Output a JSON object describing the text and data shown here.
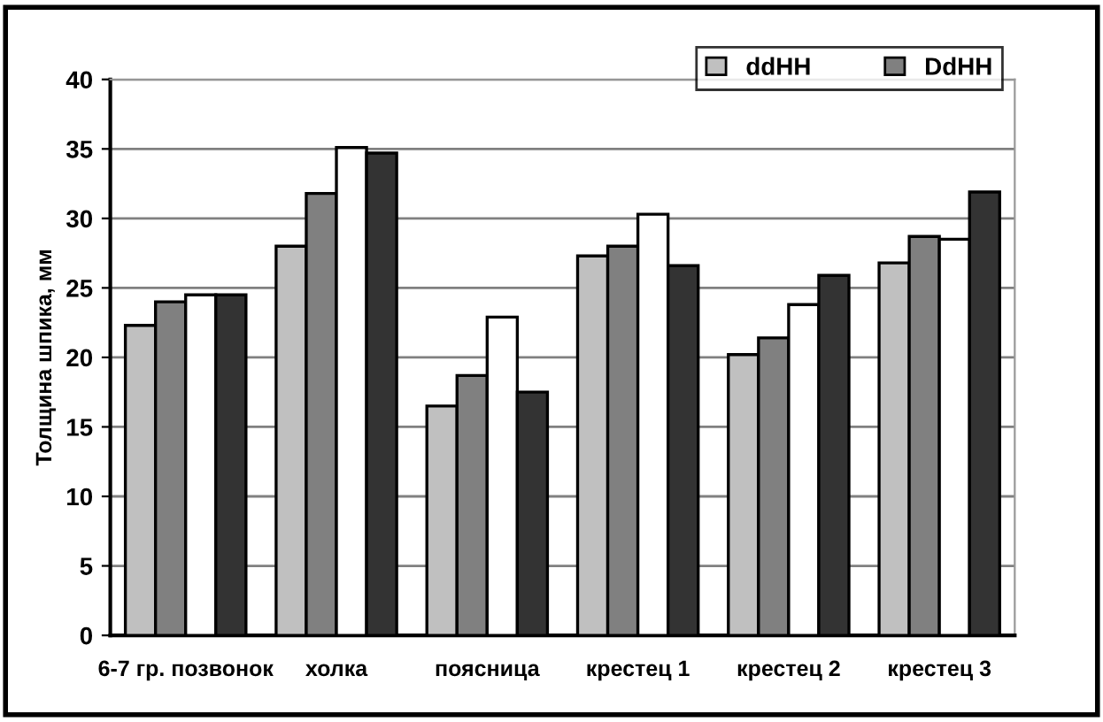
{
  "chart_data": {
    "type": "bar",
    "ylabel": "Толщина шпика, мм",
    "categories": [
      "6-7 гр. позвонок",
      "холка",
      "поясница",
      "крестец 1",
      "крестец 2",
      "крестец 3"
    ],
    "series": [
      {
        "name": "ddHH",
        "color": "#c0c0c0",
        "values": [
          22.3,
          28.0,
          16.5,
          27.3,
          20.2,
          26.8
        ]
      },
      {
        "name": "DdHH",
        "color": "#808080",
        "values": [
          24.0,
          31.8,
          18.7,
          28.0,
          21.4,
          28.7
        ]
      },
      {
        "color": "#ffffff",
        "values": [
          24.5,
          35.1,
          22.9,
          30.3,
          23.8,
          28.5
        ]
      },
      {
        "color": "#333333",
        "values": [
          24.5,
          34.7,
          17.5,
          26.6,
          25.9,
          31.9
        ]
      }
    ],
    "ylim": [
      0,
      40
    ],
    "yticks": [
      0,
      5,
      10,
      15,
      20,
      25,
      30,
      35,
      40
    ],
    "grid": "y",
    "legend": "top right"
  }
}
